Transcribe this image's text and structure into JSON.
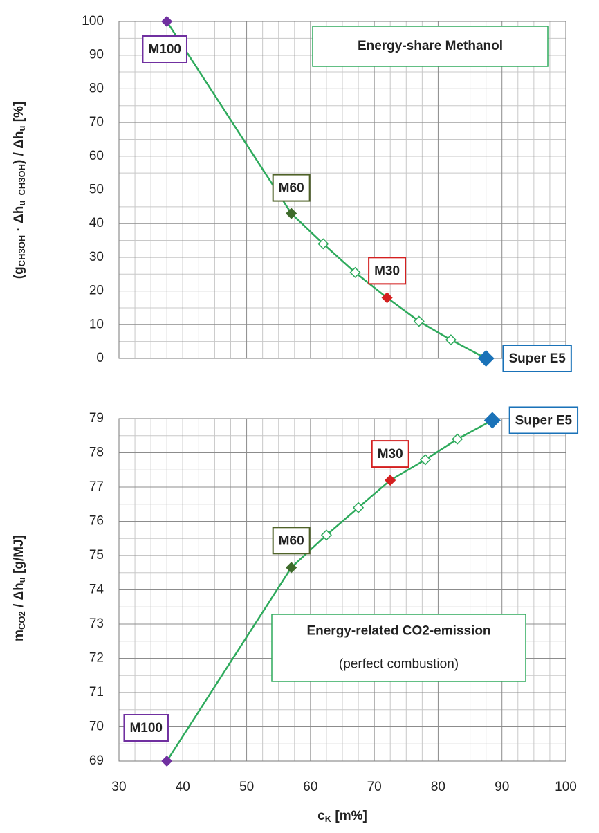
{
  "chart_data": [
    {
      "type": "line",
      "ylabel_parts": [
        "(g",
        "CH3OH",
        " · Δh",
        "u_CH3OH",
        ") / Δh",
        "u",
        " [%]"
      ],
      "annotation": [
        "Energy-share Methanol"
      ],
      "xlim": [
        30,
        100
      ],
      "xticks": [
        30,
        40,
        50,
        60,
        70,
        80,
        90,
        100
      ],
      "xtick_labels": false,
      "ylim": [
        0,
        100
      ],
      "yticks": [
        0,
        10,
        20,
        30,
        40,
        50,
        60,
        70,
        80,
        90,
        100
      ],
      "grid": true,
      "series": [
        {
          "color": "#2eaa5c",
          "x": [
            37.5,
            57,
            62,
            67,
            72,
            77,
            82,
            87.5
          ],
          "values": [
            100,
            43,
            34,
            25.5,
            18,
            11,
            5.5,
            0
          ],
          "point_labels": [
            "M100",
            "M60",
            null,
            null,
            "M30",
            null,
            null,
            "Super E5"
          ],
          "marker_colors": [
            "#7030a0",
            "#3d6b2a",
            "#ffffff",
            "#ffffff",
            "#d42020",
            "#ffffff",
            "#ffffff",
            "#1a72b8"
          ],
          "label_colors": [
            "#7030a0",
            "#4f6228",
            null,
            null,
            "#d42020",
            null,
            null,
            "#1a72b8"
          ]
        }
      ]
    },
    {
      "type": "line",
      "ylabel_parts": [
        "m",
        "CO2",
        " / Δh",
        "u",
        " [g/MJ]"
      ],
      "xlabel_parts": [
        "c",
        "K",
        " [m%]"
      ],
      "annotation": [
        "Energy-related CO2-emission",
        "(perfect combustion)"
      ],
      "xlim": [
        30,
        100
      ],
      "xticks": [
        30,
        40,
        50,
        60,
        70,
        80,
        90,
        100
      ],
      "xtick_labels": true,
      "ylim": [
        69,
        79
      ],
      "yticks": [
        69,
        70,
        71,
        72,
        73,
        74,
        75,
        76,
        77,
        78,
        79
      ],
      "grid": true,
      "series": [
        {
          "color": "#2eaa5c",
          "x": [
            37.5,
            57,
            62.5,
            67.5,
            72.5,
            78,
            83,
            88.5
          ],
          "values": [
            69,
            74.65,
            75.6,
            76.4,
            77.2,
            77.8,
            78.4,
            78.95
          ],
          "point_labels": [
            "M100",
            "M60",
            null,
            null,
            "M30",
            null,
            null,
            "Super E5"
          ],
          "marker_colors": [
            "#7030a0",
            "#3d6b2a",
            "#ffffff",
            "#ffffff",
            "#d42020",
            "#ffffff",
            "#ffffff",
            "#1a72b8"
          ],
          "label_colors": [
            "#7030a0",
            "#4f6228",
            null,
            null,
            "#d42020",
            null,
            null,
            "#1a72b8"
          ]
        }
      ]
    }
  ]
}
